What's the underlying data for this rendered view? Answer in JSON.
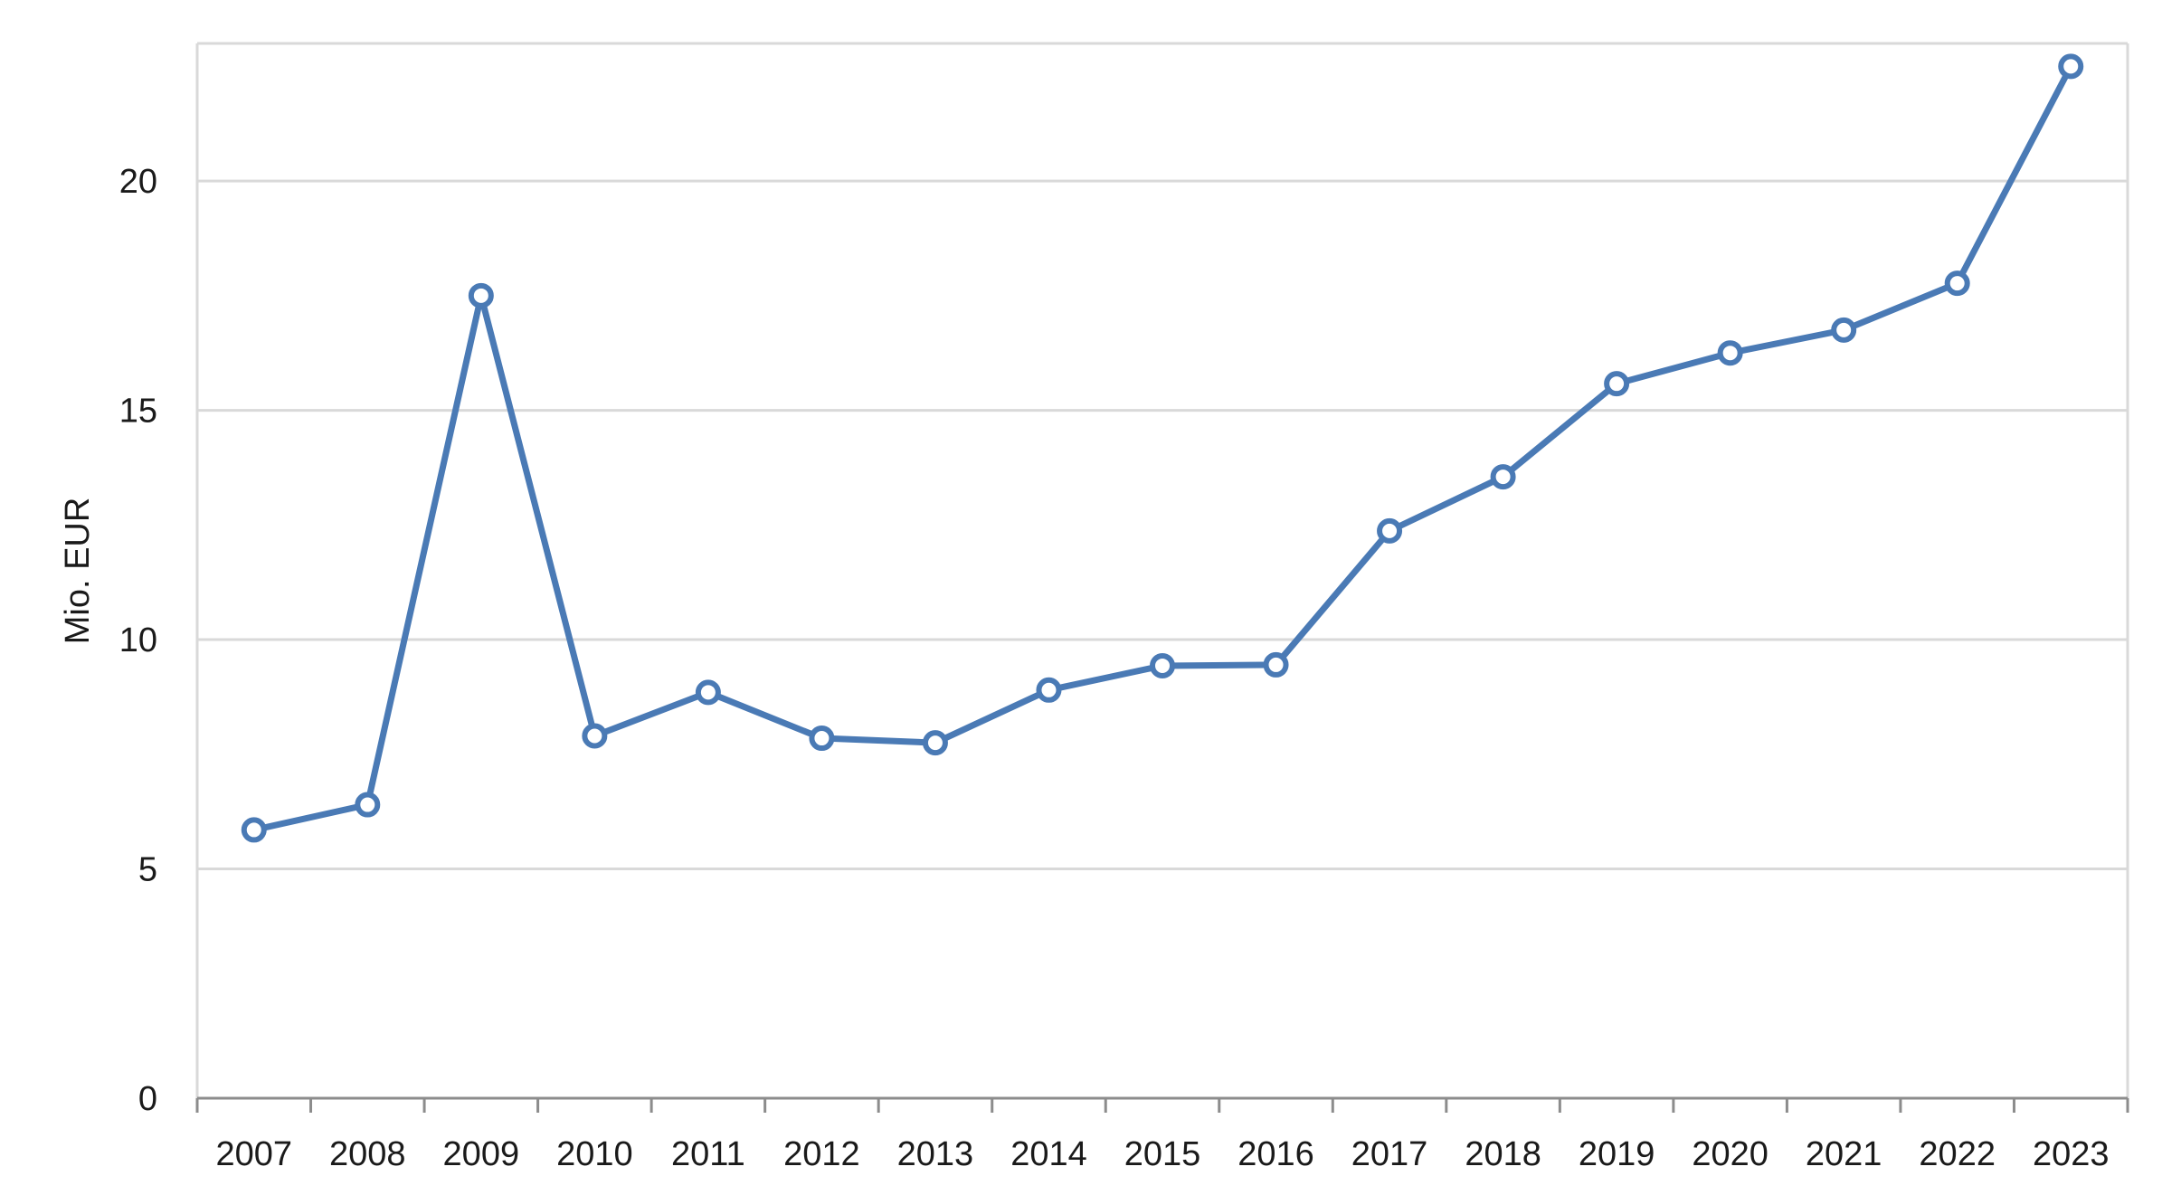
{
  "chart_data": {
    "type": "line",
    "title": "",
    "xlabel": "",
    "ylabel": "Mio. EUR",
    "ylim": [
      0,
      23
    ],
    "yticks": [
      0,
      5,
      10,
      15,
      20
    ],
    "grid": true,
    "legend": "none",
    "categories": [
      "2007",
      "2008",
      "2009",
      "2010",
      "2011",
      "2012",
      "2013",
      "2014",
      "2015",
      "2016",
      "2017",
      "2018",
      "2019",
      "2020",
      "2021",
      "2022",
      "2023"
    ],
    "series": [
      {
        "color": "#4a7ab5",
        "values": [
          5.85,
          6.4,
          17.5,
          7.9,
          8.85,
          7.85,
          7.75,
          8.9,
          9.43,
          9.45,
          12.37,
          13.55,
          15.58,
          16.25,
          16.75,
          17.77,
          22.5
        ]
      }
    ],
    "colors": {
      "line": "#4a7ab5",
      "marker_fill": "#ffffff",
      "grid": "#d9d9d9",
      "axis": "#8c8c8c",
      "frame": "#d9d9d9"
    }
  }
}
